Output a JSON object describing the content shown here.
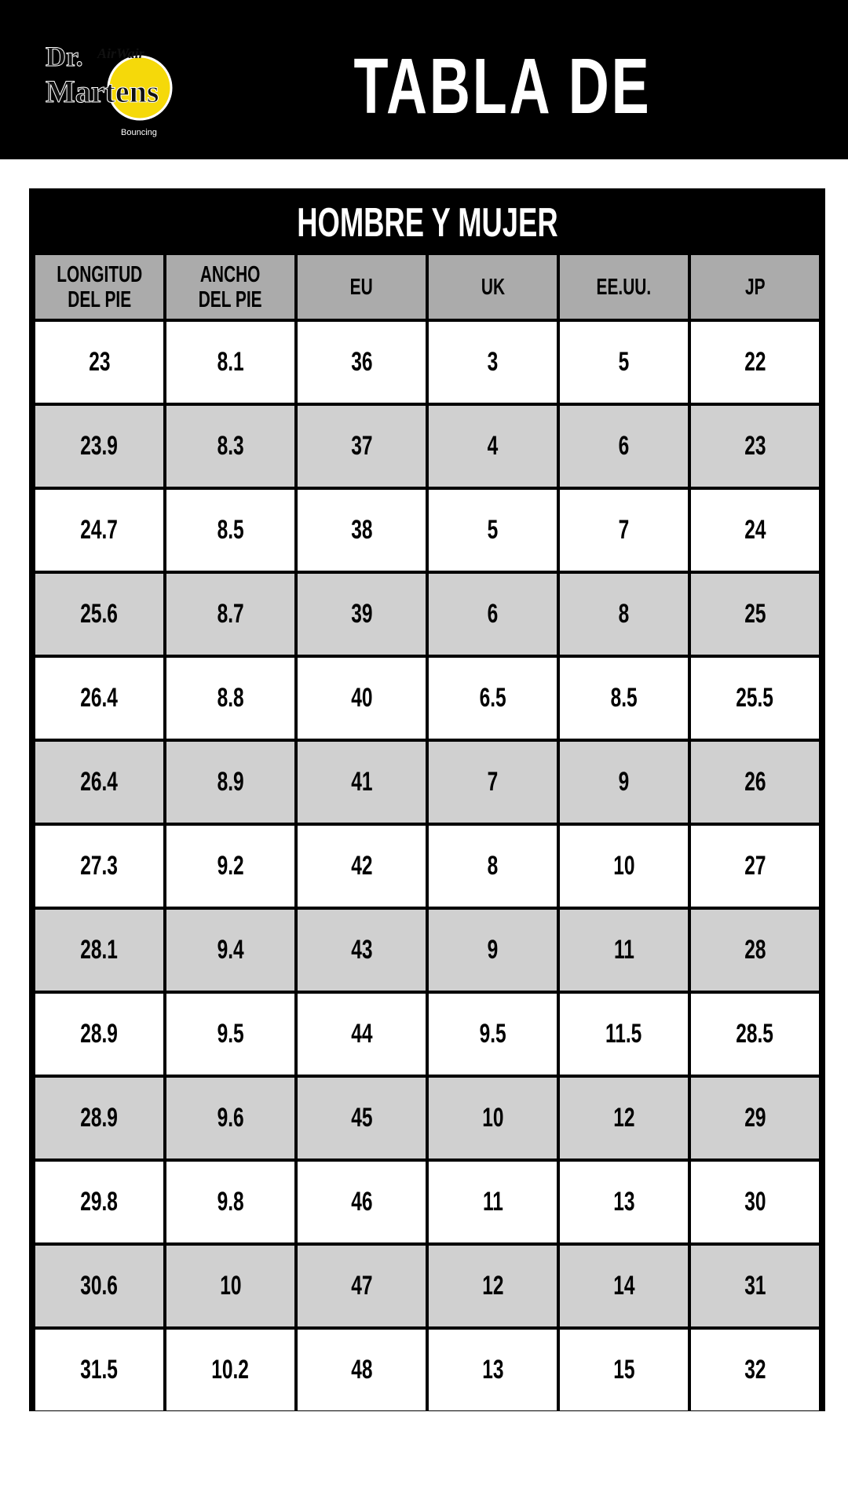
{
  "header": {
    "title": "TABLA DE TALLES",
    "logo_text": "Dr. Martens AirWair Bouncing Soles"
  },
  "colors": {
    "logo_yellow": "#f5d90a",
    "header_gray": "#ababab",
    "stripe_gray": "#d0d0d0"
  },
  "table": {
    "title": "HOMBRE Y MUJER",
    "columns": [
      "LONGITUD\nDEL PIE",
      "ANCHO\nDEL PIE",
      "EU",
      "UK",
      "EE.UU.",
      "JP"
    ],
    "rows": [
      [
        "23",
        "8.1",
        "36",
        "3",
        "5",
        "22"
      ],
      [
        "23.9",
        "8.3",
        "37",
        "4",
        "6",
        "23"
      ],
      [
        "24.7",
        "8.5",
        "38",
        "5",
        "7",
        "24"
      ],
      [
        "25.6",
        "8.7",
        "39",
        "6",
        "8",
        "25"
      ],
      [
        "26.4",
        "8.8",
        "40",
        "6.5",
        "8.5",
        "25.5"
      ],
      [
        "26.4",
        "8.9",
        "41",
        "7",
        "9",
        "26"
      ],
      [
        "27.3",
        "9.2",
        "42",
        "8",
        "10",
        "27"
      ],
      [
        "28.1",
        "9.4",
        "43",
        "9",
        "11",
        "28"
      ],
      [
        "28.9",
        "9.5",
        "44",
        "9.5",
        "11.5",
        "28.5"
      ],
      [
        "28.9",
        "9.6",
        "45",
        "10",
        "12",
        "29"
      ],
      [
        "29.8",
        "9.8",
        "46",
        "11",
        "13",
        "30"
      ],
      [
        "30.6",
        "10",
        "47",
        "12",
        "14",
        "31"
      ],
      [
        "31.5",
        "10.2",
        "48",
        "13",
        "15",
        "32"
      ]
    ]
  }
}
